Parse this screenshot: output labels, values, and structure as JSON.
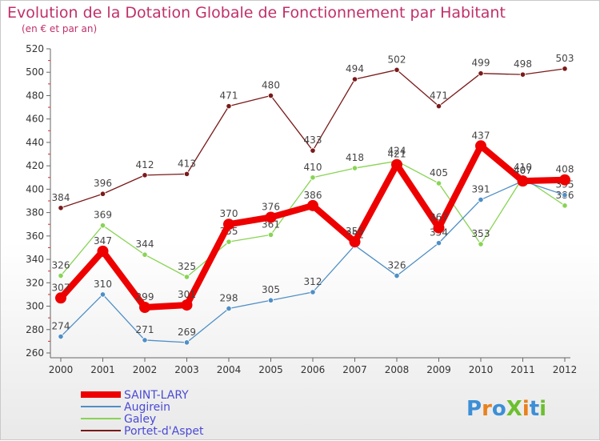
{
  "title": "Evolution de la Dotation Globale de Fonctionnement par Habitant",
  "subtitle": "(en € et par an)",
  "logo_text": "ProXiti",
  "colors": {
    "saint_lary": "#ee0000",
    "augirein": "#4f8fc6",
    "galey": "#88d454",
    "portet": "#7a1a1a",
    "logo": [
      "#3c8fd6",
      "#e8811d",
      "#3c8fd6",
      "#6cbf2e",
      "#e8811d",
      "#3c8fd6",
      "#6cbf2e"
    ]
  },
  "chart_data": {
    "type": "line",
    "title": "Evolution de la Dotation Globale de Fonctionnement par Habitant",
    "subtitle": "(en € et par an)",
    "x": [
      "2000",
      "2001",
      "2002",
      "2003",
      "2004",
      "2005",
      "2006",
      "2007",
      "2008",
      "2009",
      "2010",
      "2011",
      "2012"
    ],
    "ylim": [
      260,
      520
    ],
    "yticks": [
      260,
      280,
      300,
      320,
      340,
      360,
      380,
      400,
      420,
      440,
      460,
      480,
      500,
      520
    ],
    "grid": false,
    "legend": "bottom-left",
    "series": [
      {
        "key": "portet",
        "name": "Portet-d'Aspet",
        "values": [
          384,
          396,
          412,
          413,
          471,
          480,
          433,
          494,
          502,
          471,
          499,
          498,
          503
        ]
      },
      {
        "key": "galey",
        "name": "Galey",
        "values": [
          326,
          369,
          344,
          325,
          355,
          361,
          410,
          418,
          424,
          405,
          353,
          410,
          386
        ]
      },
      {
        "key": "augirein",
        "name": "Augirein",
        "values": [
          274,
          310,
          271,
          269,
          298,
          305,
          312,
          352,
          326,
          354,
          391,
          407,
          395
        ]
      },
      {
        "key": "saint_lary",
        "name": "SAINT-LARY",
        "values": [
          307,
          347,
          299,
          301,
          370,
          376,
          386,
          355,
          421,
          367,
          437,
          407,
          408
        ]
      }
    ]
  }
}
